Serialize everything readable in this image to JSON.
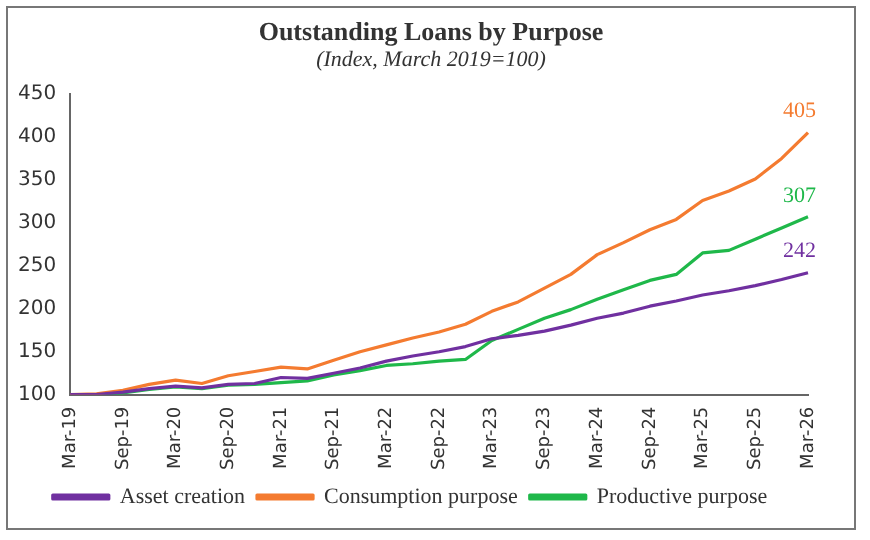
{
  "chart_data": {
    "type": "line",
    "title": "Outstanding Loans by Purpose",
    "subtitle": "(Index, March 2019=100)",
    "categories": [
      "Mar-19",
      null,
      "Sep-19",
      null,
      "Mar-20",
      null,
      "Sep-20",
      null,
      "Mar-21",
      null,
      "Sep-21",
      null,
      "Mar-22",
      null,
      "Sep-22",
      null,
      "Mar-23",
      null,
      "Sep-23",
      null,
      "Mar-24",
      null,
      "Sep-24",
      null,
      "Mar-25",
      null,
      "Sep-25",
      null,
      "Mar-26"
    ],
    "series": [
      {
        "name": "Asset creation",
        "color": "#7030a0",
        "values": [
          100,
          100,
          103,
          107,
          110,
          108,
          112,
          113,
          120,
          119,
          125,
          131,
          139,
          145,
          150,
          156,
          165,
          169,
          174,
          181,
          189,
          195,
          203,
          209,
          216,
          221,
          227,
          234,
          242
        ],
        "value_labels": [
          null,
          null,
          null,
          null,
          null,
          null,
          null,
          null,
          null,
          null,
          null,
          null,
          null,
          null,
          null,
          null,
          null,
          null,
          null,
          null,
          null,
          null,
          null,
          null,
          null,
          null,
          null,
          null,
          "242"
        ]
      },
      {
        "name": "Consumption purpose",
        "color": "#f47b30",
        "values": [
          100,
          101,
          105,
          112,
          117,
          113,
          122,
          127,
          132,
          130,
          140,
          150,
          158,
          166,
          173,
          182,
          197,
          208,
          224,
          240,
          263,
          277,
          292,
          304,
          326,
          337,
          351,
          375,
          405
        ],
        "value_labels": [
          null,
          null,
          null,
          null,
          null,
          null,
          null,
          null,
          null,
          null,
          null,
          null,
          null,
          null,
          null,
          null,
          null,
          null,
          null,
          null,
          null,
          null,
          null,
          null,
          null,
          null,
          null,
          null,
          "405"
        ]
      },
      {
        "name": "Productive purpose",
        "color": "#1fb84a",
        "values": [
          100,
          100,
          102,
          106,
          109,
          107,
          111,
          112,
          114,
          116,
          123,
          128,
          134,
          136,
          139,
          141,
          163,
          176,
          189,
          199,
          211,
          222,
          233,
          240,
          265,
          268,
          281,
          294,
          307
        ],
        "value_labels": [
          null,
          null,
          null,
          null,
          null,
          null,
          null,
          null,
          null,
          null,
          null,
          null,
          null,
          null,
          null,
          null,
          null,
          null,
          null,
          null,
          null,
          null,
          null,
          null,
          null,
          null,
          null,
          null,
          "307"
        ]
      }
    ],
    "ylim": [
      100,
      450
    ],
    "yticks": [
      100,
      150,
      200,
      250,
      300,
      350,
      400,
      450
    ],
    "grid": false,
    "legend": "bottom",
    "marker": "none",
    "line_style": "solid"
  }
}
